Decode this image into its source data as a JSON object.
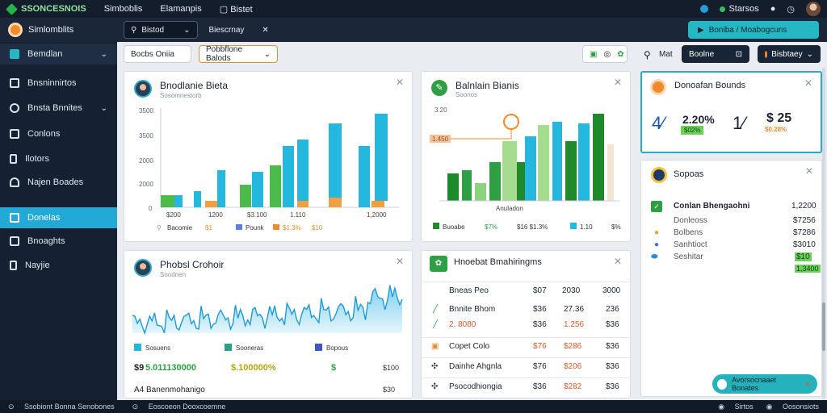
{
  "topbar": {
    "brand": "SSONCESNOIS",
    "menu": [
      "Simboblis",
      "Elamanpis",
      "Bistet"
    ],
    "right_label": "Starsos"
  },
  "secondbar": {
    "title": "Simlomblits",
    "search": "Bistod",
    "dropdown": "Biescrnay",
    "close": "✕",
    "cta": "Boniba / Moabogcuns"
  },
  "sidebar": {
    "items": [
      {
        "label": "Bemdlan",
        "chev": "⌄"
      },
      {
        "label": "Bnsninnirtos",
        "chev": ""
      },
      {
        "label": "Bnsta Bnnites",
        "chev": "⌄"
      },
      {
        "label": "Conlons",
        "chev": ""
      },
      {
        "label": "Ilotors",
        "chev": ""
      },
      {
        "label": "Najen Boades",
        "chev": ""
      },
      {
        "label": "Donelas",
        "chev": ""
      },
      {
        "label": "Bnoaghts",
        "chev": ""
      },
      {
        "label": "Nayjie",
        "chev": ""
      }
    ]
  },
  "toolbar": {
    "btn1": "Bocbs Oniia",
    "btn2": "Pobbflone Balods",
    "search_label": "Mat",
    "search_btn": "Boolne",
    "sort_btn": "Bisbtaey"
  },
  "card1": {
    "title": "Bnodlanie Bieta",
    "sub": "Sosomnestorb",
    "yticks": [
      "3500",
      "3500",
      "2000",
      "2000",
      "0"
    ],
    "xticks": [
      "$200",
      "1200",
      "$3.100",
      "1.110",
      "1,2000"
    ],
    "legend": [
      "Bacomie",
      "$1",
      "Pounk",
      "$1.3%",
      "$10"
    ]
  },
  "card2": {
    "title": "Balnlain Bianis",
    "sub": "Soonos",
    "ytick": "3.20",
    "marker": "1.450",
    "xlabel": "Anuladon",
    "legend": [
      "Buoabe",
      "$7%",
      "$16 $1.3%",
      "1.10",
      "$%"
    ]
  },
  "card3": {
    "title": "Donoafan Bounds",
    "s1": "4⁄",
    "s2": "2.20%",
    "s3": "1⁄",
    "s4": "$ 25",
    "sub2": "$02%",
    "sub4": "$0.28%"
  },
  "card4": {
    "title": "Phobsl Crohoir",
    "sub": "Soodnen",
    "legend": [
      "Sosuens",
      "Sooneras",
      "Bopous"
    ],
    "stats": [
      "$9",
      "5.011130000",
      "$.100000%",
      "$",
      "$100"
    ],
    "footer_label": "A4 Banenmohanigo",
    "footer_val": "$30"
  },
  "card5": {
    "title": "Hnoebat Bmahiringms",
    "header": [
      "Bneas Peo",
      "$07",
      "2030",
      "3000"
    ],
    "rows": [
      [
        "Bnnite Bhom",
        "$36",
        "27.36",
        "236"
      ],
      [
        "2. 8080",
        "$36",
        "1.256",
        "$36"
      ],
      [
        "Copet Colo",
        "$76",
        "$286",
        "$36"
      ],
      [
        "Dainhe Ahgnla",
        "$76",
        "$206",
        "$36"
      ],
      [
        "Psocodhiongia",
        "$36",
        "$282",
        "$36"
      ]
    ]
  },
  "card6": {
    "title": "Sopoas",
    "heading": "Conlan Bhengaohni",
    "heading_val": "1,2200",
    "rows": [
      [
        "Donleoss",
        "$7256"
      ],
      [
        "Bolbens",
        "$7286"
      ],
      [
        "Sanhtioct",
        "$3010"
      ],
      [
        "Seshitar",
        "$10"
      ]
    ],
    "extra_val": "1,3400"
  },
  "chip": {
    "label": "Avorsocnaaet Bonates"
  },
  "footer": {
    "items": [
      "Ssobiont Bonna Senobones",
      "Eoscoeon Dooxcoemne"
    ],
    "right": [
      "Sirtos",
      "Oosonsiots"
    ]
  },
  "colors": {
    "accent": "#22a9d6",
    "green": "#2ea043",
    "teal": "#25b8c4",
    "orange": "#f08b2c"
  }
}
